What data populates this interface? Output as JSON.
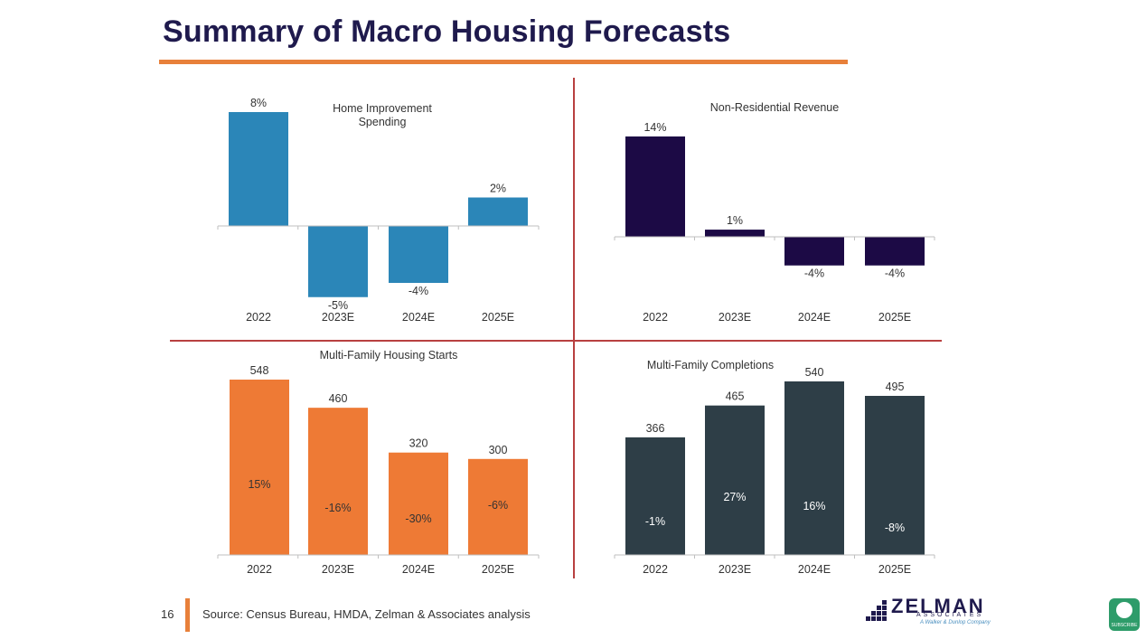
{
  "slide": {
    "title": "Summary of Macro Housing Forecasts",
    "page_number": "16",
    "source": "Source: Census Bureau, HMDA, Zelman & Associates analysis",
    "logo": {
      "word": "ZELMAN",
      "sub": "ASSOCIATES",
      "tagline": "A Walker & Dunlop Company"
    },
    "badge_label": "SUBSCRIBE",
    "colors": {
      "title": "#1f1a4d",
      "accent": "#e8803a",
      "divider": "#b84040"
    }
  },
  "chart_data": [
    {
      "type": "bar",
      "title": "Home Improvement Spending",
      "categories": [
        "2022",
        "2023E",
        "2024E",
        "2025E"
      ],
      "values": [
        8,
        -5,
        -4,
        2
      ],
      "value_labels": [
        "8%",
        "-5%",
        "-4%",
        "2%"
      ],
      "unit": "%",
      "color": "#2b86b8",
      "ylim": [
        -5,
        8
      ],
      "grid": false,
      "legend": "none"
    },
    {
      "type": "bar",
      "title": "Non-Residential Revenue",
      "categories": [
        "2022",
        "2023E",
        "2024E",
        "2025E"
      ],
      "values": [
        14,
        1,
        -4,
        -4
      ],
      "value_labels": [
        "14%",
        "1%",
        "-4%",
        "-4%"
      ],
      "unit": "%",
      "color": "#1c0a45",
      "ylim": [
        -4,
        14
      ],
      "grid": false,
      "legend": "none"
    },
    {
      "type": "bar",
      "title": "Multi-Family Housing Starts",
      "categories": [
        "2022",
        "2023E",
        "2024E",
        "2025E"
      ],
      "values": [
        548,
        460,
        320,
        300
      ],
      "value_labels": [
        "548",
        "460",
        "320",
        "300"
      ],
      "inner_labels": [
        "15%",
        "-16%",
        "-30%",
        "-6%"
      ],
      "color": "#ee7a35",
      "ylim": [
        0,
        548
      ],
      "grid": false,
      "legend": "none"
    },
    {
      "type": "bar",
      "title": "Multi-Family Completions",
      "categories": [
        "2022",
        "2023E",
        "2024E",
        "2025E"
      ],
      "values": [
        366,
        465,
        540,
        495
      ],
      "value_labels": [
        "366",
        "465",
        "540",
        "495"
      ],
      "inner_labels": [
        "-1%",
        "27%",
        "16%",
        "-8%"
      ],
      "color": "#2e3e47",
      "ylim": [
        0,
        540
      ],
      "grid": false,
      "legend": "none"
    }
  ]
}
